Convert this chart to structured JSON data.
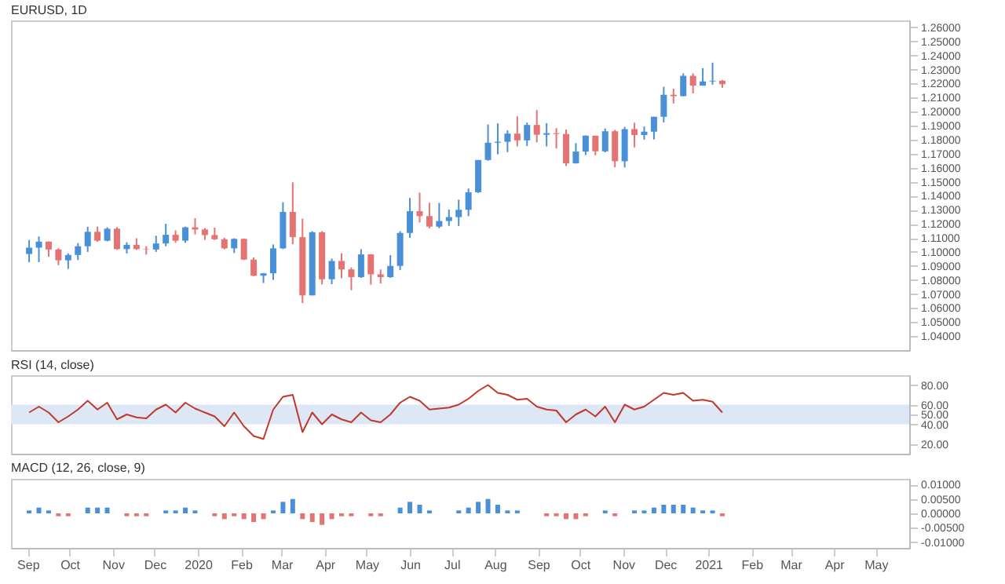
{
  "chart_data": [
    {
      "type": "candlestick",
      "title": "EURUSD, 1D",
      "x": [
        "2019-09-02",
        "2019-09-09",
        "2019-09-16",
        "2019-09-23",
        "2019-09-30",
        "2019-10-07",
        "2019-10-14",
        "2019-10-21",
        "2019-10-28",
        "2019-11-04",
        "2019-11-11",
        "2019-11-18",
        "2019-11-25",
        "2019-12-02",
        "2019-12-09",
        "2019-12-16",
        "2019-12-23",
        "2019-12-30",
        "2020-01-06",
        "2020-01-13",
        "2020-01-20",
        "2020-01-27",
        "2020-02-03",
        "2020-02-10",
        "2020-02-17",
        "2020-02-24",
        "2020-03-02",
        "2020-03-09",
        "2020-03-16",
        "2020-03-23",
        "2020-03-30",
        "2020-04-06",
        "2020-04-13",
        "2020-04-20",
        "2020-04-27",
        "2020-05-04",
        "2020-05-11",
        "2020-05-18",
        "2020-05-25",
        "2020-06-01",
        "2020-06-08",
        "2020-06-15",
        "2020-06-22",
        "2020-06-29",
        "2020-07-06",
        "2020-07-13",
        "2020-07-20",
        "2020-07-27",
        "2020-08-03",
        "2020-08-10",
        "2020-08-17",
        "2020-08-24",
        "2020-08-31",
        "2020-09-07",
        "2020-09-14",
        "2020-09-21",
        "2020-09-28",
        "2020-10-05",
        "2020-10-12",
        "2020-10-19",
        "2020-10-26",
        "2020-11-02",
        "2020-11-09",
        "2020-11-16",
        "2020-11-23",
        "2020-11-30",
        "2020-12-07",
        "2020-12-14",
        "2020-12-21",
        "2020-12-28",
        "2021-01-04",
        "2021-01-11"
      ],
      "ohlc": [
        [
          1.0985,
          1.1085,
          1.0926,
          1.103
        ],
        [
          1.103,
          1.111,
          1.0927,
          1.1073
        ],
        [
          1.1073,
          1.1075,
          1.0965,
          1.1017
        ],
        [
          1.1017,
          1.1025,
          1.0905,
          1.094
        ],
        [
          1.094,
          1.099,
          1.0879,
          1.0978
        ],
        [
          1.0978,
          1.1063,
          1.0942,
          1.104
        ],
        [
          1.104,
          1.1179,
          1.1,
          1.1143
        ],
        [
          1.1143,
          1.118,
          1.1072,
          1.108
        ],
        [
          1.108,
          1.1175,
          1.1075,
          1.1165
        ],
        [
          1.1165,
          1.1176,
          1.1015,
          1.102
        ],
        [
          1.102,
          1.1068,
          1.0989,
          1.105
        ],
        [
          1.105,
          1.1097,
          1.1014,
          1.102
        ],
        [
          1.102,
          1.104,
          1.0981,
          1.1017
        ],
        [
          1.1017,
          1.1115,
          1.1,
          1.106
        ],
        [
          1.106,
          1.12,
          1.104,
          1.1122
        ],
        [
          1.1122,
          1.1153,
          1.1065,
          1.108
        ],
        [
          1.108,
          1.118,
          1.1065,
          1.1175
        ],
        [
          1.1175,
          1.124,
          1.1125,
          1.116
        ],
        [
          1.116,
          1.117,
          1.1085,
          1.112
        ],
        [
          1.112,
          1.1173,
          1.1085,
          1.109
        ],
        [
          1.109,
          1.11,
          1.1019,
          1.1025
        ],
        [
          1.1025,
          1.1097,
          1.0992,
          1.1093
        ],
        [
          1.1093,
          1.1095,
          1.0942,
          1.0945
        ],
        [
          1.0945,
          1.096,
          1.0827,
          1.083
        ],
        [
          1.083,
          1.085,
          1.0778,
          1.0847
        ],
        [
          1.0847,
          1.1053,
          1.08,
          1.1025
        ],
        [
          1.1025,
          1.1354,
          1.102,
          1.1285
        ],
        [
          1.1285,
          1.1496,
          1.1055,
          1.1105
        ],
        [
          1.1105,
          1.1237,
          1.0636,
          1.069
        ],
        [
          1.069,
          1.1147,
          1.069,
          1.114
        ],
        [
          1.114,
          1.1148,
          1.0768,
          1.0805
        ],
        [
          1.0805,
          1.0952,
          1.077,
          1.0935
        ],
        [
          1.0935,
          1.099,
          1.0812,
          1.0875
        ],
        [
          1.0875,
          1.089,
          1.0727,
          1.082
        ],
        [
          1.082,
          1.1019,
          1.0815,
          1.0982
        ],
        [
          1.0982,
          1.0985,
          1.0767,
          1.084
        ],
        [
          1.084,
          1.0875,
          1.0775,
          1.082
        ],
        [
          1.082,
          1.0976,
          1.0815,
          1.09
        ],
        [
          1.09,
          1.1147,
          1.087,
          1.1135
        ],
        [
          1.1135,
          1.1384,
          1.11,
          1.129
        ],
        [
          1.129,
          1.1422,
          1.121,
          1.1255
        ],
        [
          1.1255,
          1.135,
          1.1168,
          1.118
        ],
        [
          1.118,
          1.1349,
          1.1168,
          1.122
        ],
        [
          1.122,
          1.1302,
          1.1185,
          1.1248
        ],
        [
          1.1248,
          1.1372,
          1.1185,
          1.13
        ],
        [
          1.13,
          1.1452,
          1.1255,
          1.1425
        ],
        [
          1.1425,
          1.1655,
          1.142,
          1.1655
        ],
        [
          1.1655,
          1.1908,
          1.165,
          1.1778
        ],
        [
          1.1778,
          1.1916,
          1.1696,
          1.1785
        ],
        [
          1.1785,
          1.1866,
          1.1711,
          1.1843
        ],
        [
          1.1843,
          1.1966,
          1.1752,
          1.1795
        ],
        [
          1.1795,
          1.1922,
          1.1755,
          1.1905
        ],
        [
          1.1905,
          1.2011,
          1.1781,
          1.1835
        ],
        [
          1.1835,
          1.1917,
          1.1752,
          1.1846
        ],
        [
          1.1846,
          1.1882,
          1.1737,
          1.184
        ],
        [
          1.184,
          1.1872,
          1.1612,
          1.1631
        ],
        [
          1.1631,
          1.1775,
          1.163,
          1.1715
        ],
        [
          1.1715,
          1.1831,
          1.169,
          1.1828
        ],
        [
          1.1828,
          1.1828,
          1.1689,
          1.1717
        ],
        [
          1.1717,
          1.188,
          1.171,
          1.186
        ],
        [
          1.186,
          1.187,
          1.1603,
          1.1646
        ],
        [
          1.1646,
          1.1891,
          1.1602,
          1.1875
        ],
        [
          1.1875,
          1.192,
          1.1745,
          1.1833
        ],
        [
          1.1833,
          1.1894,
          1.18,
          1.1857
        ],
        [
          1.1857,
          1.1963,
          1.1801,
          1.1963
        ],
        [
          1.1963,
          1.2177,
          1.1923,
          1.212
        ],
        [
          1.212,
          1.2163,
          1.2058,
          1.211
        ],
        [
          1.211,
          1.2273,
          1.211,
          1.2255
        ],
        [
          1.2255,
          1.2272,
          1.213,
          1.2185
        ],
        [
          1.2185,
          1.231,
          1.2185,
          1.2215
        ],
        [
          1.2215,
          1.2349,
          1.2192,
          1.222
        ],
        [
          1.222,
          1.2225,
          1.217,
          1.2195
        ]
      ],
      "colors": [
        "#4a90d9",
        "#4a90d9",
        "#e57373",
        "#e57373",
        "#4a90d9",
        "#4a90d9",
        "#4a90d9",
        "#e57373",
        "#4a90d9",
        "#e57373",
        "#4a90d9",
        "#e57373",
        "#e57373",
        "#4a90d9",
        "#4a90d9",
        "#e57373",
        "#4a90d9",
        "#e57373",
        "#e57373",
        "#e57373",
        "#e57373",
        "#4a90d9",
        "#e57373",
        "#e57373",
        "#4a90d9",
        "#4a90d9",
        "#4a90d9",
        "#e57373",
        "#e57373",
        "#4a90d9",
        "#e57373",
        "#4a90d9",
        "#e57373",
        "#e57373",
        "#4a90d9",
        "#e57373",
        "#e57373",
        "#4a90d9",
        "#4a90d9",
        "#4a90d9",
        "#e57373",
        "#e57373",
        "#4a90d9",
        "#4a90d9",
        "#4a90d9",
        "#4a90d9",
        "#4a90d9",
        "#4a90d9",
        "#4a90d9",
        "#4a90d9",
        "#e57373",
        "#4a90d9",
        "#e57373",
        "#4a90d9",
        "#e57373",
        "#e57373",
        "#4a90d9",
        "#4a90d9",
        "#e57373",
        "#4a90d9",
        "#e57373",
        "#4a90d9",
        "#e57373",
        "#4a90d9",
        "#4a90d9",
        "#4a90d9",
        "#e57373",
        "#4a90d9",
        "#e57373",
        "#4a90d9",
        "#4a90d9",
        "#e57373"
      ],
      "xlim": [
        "2019-08-20",
        "2021-05-25"
      ],
      "ylim": [
        1.03,
        1.265
      ],
      "yticks": [
        {
          "value": 1.04,
          "label": "1.04000"
        },
        {
          "value": 1.05,
          "label": "1.05000"
        },
        {
          "value": 1.06,
          "label": "1.06000"
        },
        {
          "value": 1.07,
          "label": "1.07000"
        },
        {
          "value": 1.08,
          "label": "1.08000"
        },
        {
          "value": 1.09,
          "label": "1.09000"
        },
        {
          "value": 1.1,
          "label": "1.10000"
        },
        {
          "value": 1.11,
          "label": "1.11000"
        },
        {
          "value": 1.12,
          "label": "1.12000"
        },
        {
          "value": 1.13,
          "label": "1.13000"
        },
        {
          "value": 1.14,
          "label": "1.14000"
        },
        {
          "value": 1.15,
          "label": "1.15000"
        },
        {
          "value": 1.16,
          "label": "1.16000"
        },
        {
          "value": 1.17,
          "label": "1.17000"
        },
        {
          "value": 1.18,
          "label": "1.18000"
        },
        {
          "value": 1.19,
          "label": "1.19000"
        },
        {
          "value": 1.2,
          "label": "1.20000"
        },
        {
          "value": 1.21,
          "label": "1.21000"
        },
        {
          "value": 1.22,
          "label": "1.22000"
        },
        {
          "value": 1.23,
          "label": "1.23000"
        },
        {
          "value": 1.24,
          "label": "1.24000"
        },
        {
          "value": 1.25,
          "label": "1.25000"
        },
        {
          "value": 1.26,
          "label": "1.26000"
        }
      ],
      "tick_labels": "y"
    },
    {
      "type": "line",
      "title": "RSI (14, close)",
      "x": [
        "2019-09-02",
        "2019-09-09",
        "2019-09-16",
        "2019-09-23",
        "2019-09-30",
        "2019-10-07",
        "2019-10-14",
        "2019-10-21",
        "2019-10-28",
        "2019-11-04",
        "2019-11-11",
        "2019-11-18",
        "2019-11-25",
        "2019-12-02",
        "2019-12-09",
        "2019-12-16",
        "2019-12-23",
        "2019-12-30",
        "2020-01-06",
        "2020-01-13",
        "2020-01-20",
        "2020-01-27",
        "2020-02-03",
        "2020-02-10",
        "2020-02-17",
        "2020-02-24",
        "2020-03-02",
        "2020-03-09",
        "2020-03-16",
        "2020-03-23",
        "2020-03-30",
        "2020-04-06",
        "2020-04-13",
        "2020-04-20",
        "2020-04-27",
        "2020-05-04",
        "2020-05-11",
        "2020-05-18",
        "2020-05-25",
        "2020-06-01",
        "2020-06-08",
        "2020-06-15",
        "2020-06-22",
        "2020-06-29",
        "2020-07-06",
        "2020-07-13",
        "2020-07-20",
        "2020-07-27",
        "2020-08-03",
        "2020-08-10",
        "2020-08-17",
        "2020-08-24",
        "2020-08-31",
        "2020-09-07",
        "2020-09-14",
        "2020-09-21",
        "2020-09-28",
        "2020-10-05",
        "2020-10-12",
        "2020-10-19",
        "2020-10-26",
        "2020-11-02",
        "2020-11-09",
        "2020-11-16",
        "2020-11-23",
        "2020-11-30",
        "2020-12-07",
        "2020-12-14",
        "2020-12-21",
        "2020-12-28",
        "2021-01-04",
        "2021-01-11"
      ],
      "series": [
        {
          "color": "#c0392b",
          "values": [
            52,
            58,
            52,
            42,
            48,
            55,
            64,
            55,
            62,
            45,
            50,
            47,
            46,
            55,
            60,
            52,
            62,
            56,
            52,
            48,
            38,
            52,
            38,
            28,
            25,
            55,
            68,
            70,
            32,
            52,
            40,
            50,
            45,
            42,
            52,
            44,
            42,
            50,
            62,
            68,
            64,
            55,
            56,
            57,
            60,
            66,
            74,
            80,
            72,
            70,
            65,
            66,
            58,
            55,
            54,
            42,
            50,
            55,
            48,
            58,
            42,
            60,
            55,
            58,
            65,
            72,
            70,
            72,
            64,
            65,
            63,
            52
          ]
        }
      ],
      "bands": [
        {
          "axis": "y",
          "from": 40,
          "to": 60,
          "color": "#dde7f5"
        }
      ],
      "xlim": [
        "2019-08-20",
        "2021-05-25"
      ],
      "ylim": [
        10,
        90
      ],
      "yticks": [
        {
          "value": 20,
          "label": "20.00"
        },
        {
          "value": 40,
          "label": "40.00"
        },
        {
          "value": 50,
          "label": "50.00"
        },
        {
          "value": 60,
          "label": "60.00"
        },
        {
          "value": 80,
          "label": "80.00"
        }
      ],
      "tick_labels": "y"
    },
    {
      "type": "bar",
      "title": "MACD (12, 26, close, 9)",
      "x": [
        "2019-09-02",
        "2019-09-09",
        "2019-09-16",
        "2019-09-23",
        "2019-09-30",
        "2019-10-07",
        "2019-10-14",
        "2019-10-21",
        "2019-10-28",
        "2019-11-04",
        "2019-11-11",
        "2019-11-18",
        "2019-11-25",
        "2019-12-02",
        "2019-12-09",
        "2019-12-16",
        "2019-12-23",
        "2019-12-30",
        "2020-01-06",
        "2020-01-13",
        "2020-01-20",
        "2020-01-27",
        "2020-02-03",
        "2020-02-10",
        "2020-02-17",
        "2020-02-24",
        "2020-03-02",
        "2020-03-09",
        "2020-03-16",
        "2020-03-23",
        "2020-03-30",
        "2020-04-06",
        "2020-04-13",
        "2020-04-20",
        "2020-04-27",
        "2020-05-04",
        "2020-05-11",
        "2020-05-18",
        "2020-05-25",
        "2020-06-01",
        "2020-06-08",
        "2020-06-15",
        "2020-06-22",
        "2020-06-29",
        "2020-07-06",
        "2020-07-13",
        "2020-07-20",
        "2020-07-27",
        "2020-08-03",
        "2020-08-10",
        "2020-08-17",
        "2020-08-24",
        "2020-08-31",
        "2020-09-07",
        "2020-09-14",
        "2020-09-21",
        "2020-09-28",
        "2020-10-05",
        "2020-10-12",
        "2020-10-19",
        "2020-10-26",
        "2020-11-02",
        "2020-11-09",
        "2020-11-16",
        "2020-11-23",
        "2020-11-30",
        "2020-12-07",
        "2020-12-14",
        "2020-12-21",
        "2020-12-28",
        "2021-01-04",
        "2021-01-11"
      ],
      "values": [
        0.001,
        0.002,
        0.001,
        -0.001,
        -0.001,
        0,
        0.002,
        0.002,
        0.002,
        0,
        -0.001,
        -0.001,
        -0.001,
        0,
        0.001,
        0.001,
        0.002,
        0.001,
        0,
        -0.001,
        -0.002,
        -0.001,
        -0.002,
        -0.003,
        -0.002,
        0.001,
        0.004,
        0.005,
        -0.002,
        -0.003,
        -0.004,
        -0.002,
        -0.001,
        -0.001,
        0,
        -0.001,
        -0.001,
        0,
        0.002,
        0.004,
        0.003,
        0.001,
        0,
        0,
        0.001,
        0.002,
        0.004,
        0.005,
        0.003,
        0.001,
        0.001,
        0,
        0,
        -0.001,
        -0.001,
        -0.002,
        -0.002,
        -0.001,
        0,
        0.001,
        -0.001,
        0,
        0.001,
        0.001,
        0.002,
        0.003,
        0.003,
        0.003,
        0.002,
        0.001,
        0.001,
        -0.001
      ],
      "colors": [
        "#4a90d9",
        "#4a90d9",
        "#4a90d9",
        "#e57373",
        "#e57373",
        "#4a90d9",
        "#4a90d9",
        "#4a90d9",
        "#4a90d9",
        "#4a90d9",
        "#e57373",
        "#e57373",
        "#e57373",
        "#4a90d9",
        "#4a90d9",
        "#4a90d9",
        "#4a90d9",
        "#4a90d9",
        "#4a90d9",
        "#e57373",
        "#e57373",
        "#e57373",
        "#e57373",
        "#e57373",
        "#e57373",
        "#4a90d9",
        "#4a90d9",
        "#4a90d9",
        "#e57373",
        "#e57373",
        "#e57373",
        "#e57373",
        "#e57373",
        "#e57373",
        "#4a90d9",
        "#e57373",
        "#e57373",
        "#4a90d9",
        "#4a90d9",
        "#4a90d9",
        "#4a90d9",
        "#4a90d9",
        "#4a90d9",
        "#4a90d9",
        "#4a90d9",
        "#4a90d9",
        "#4a90d9",
        "#4a90d9",
        "#4a90d9",
        "#4a90d9",
        "#4a90d9",
        "#4a90d9",
        "#4a90d9",
        "#e57373",
        "#e57373",
        "#e57373",
        "#e57373",
        "#e57373",
        "#4a90d9",
        "#4a90d9",
        "#e57373",
        "#4a90d9",
        "#4a90d9",
        "#4a90d9",
        "#4a90d9",
        "#4a90d9",
        "#4a90d9",
        "#4a90d9",
        "#4a90d9",
        "#4a90d9",
        "#4a90d9",
        "#e57373"
      ],
      "xlim": [
        "2019-08-20",
        "2021-05-25"
      ],
      "ylim": [
        -0.012,
        0.012
      ],
      "yticks": [
        {
          "value": -0.01,
          "label": "-0.01000"
        },
        {
          "value": -0.005,
          "label": "-0.00500"
        },
        {
          "value": 0,
          "label": "0.00000"
        },
        {
          "value": 0.005,
          "label": "0.00500"
        },
        {
          "value": 0.01,
          "label": "0.01000"
        }
      ],
      "xticks": [
        {
          "value": "2019-09-01",
          "label": "Sep"
        },
        {
          "value": "2019-10-01",
          "label": "Oct"
        },
        {
          "value": "2019-11-01",
          "label": "Nov"
        },
        {
          "value": "2019-12-01",
          "label": "Dec"
        },
        {
          "value": "2020-01-01",
          "label": "2020"
        },
        {
          "value": "2020-02-01",
          "label": "Feb"
        },
        {
          "value": "2020-03-01",
          "label": "Mar"
        },
        {
          "value": "2020-04-01",
          "label": "Apr"
        },
        {
          "value": "2020-05-01",
          "label": "May"
        },
        {
          "value": "2020-06-01",
          "label": "Jun"
        },
        {
          "value": "2020-07-01",
          "label": "Jul"
        },
        {
          "value": "2020-08-01",
          "label": "Aug"
        },
        {
          "value": "2020-09-01",
          "label": "Sep"
        },
        {
          "value": "2020-10-01",
          "label": "Oct"
        },
        {
          "value": "2020-11-01",
          "label": "Nov"
        },
        {
          "value": "2020-12-01",
          "label": "Dec"
        },
        {
          "value": "2021-01-01",
          "label": "2021"
        },
        {
          "value": "2021-02-01",
          "label": "Feb"
        },
        {
          "value": "2021-03-01",
          "label": "Mar"
        },
        {
          "value": "2021-04-01",
          "label": "Apr"
        },
        {
          "value": "2021-05-01",
          "label": "May"
        }
      ]
    }
  ]
}
